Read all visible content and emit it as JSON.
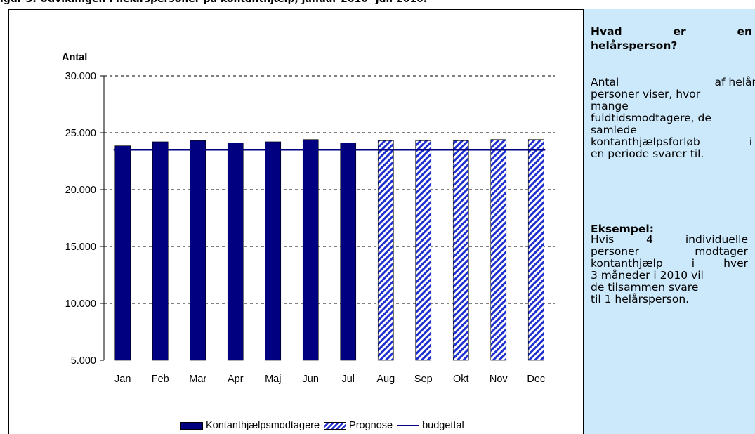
{
  "figure_title": "igur 3: Udviklingen i helårspersoner på kontanthjælp, januar 2010 -juli 2010.",
  "chart_data": {
    "type": "bar",
    "ylabel": "Antal",
    "ylim": [
      5000,
      30000
    ],
    "yticks": [
      5000,
      10000,
      15000,
      20000,
      25000,
      30000
    ],
    "ytick_labels": [
      "5.000",
      "10.000",
      "15.000",
      "20.000",
      "25.000",
      "30.000"
    ],
    "categories": [
      "Jan",
      "Feb",
      "Mar",
      "Apr",
      "Maj",
      "Jun",
      "Jul",
      "Aug",
      "Sep",
      "Okt",
      "Nov",
      "Dec"
    ],
    "grid": "horizontal dashed",
    "legend_position": "bottom",
    "series": [
      {
        "name": "Kontanthjælpsmodtagere",
        "kind": "bar",
        "color": "#000080",
        "values": [
          23850,
          24200,
          24300,
          24100,
          24200,
          24400,
          24100,
          null,
          null,
          null,
          null,
          null
        ]
      },
      {
        "name": "Prognose",
        "kind": "bar-hatched",
        "color": "#1f2fcf",
        "values": [
          null,
          null,
          null,
          null,
          null,
          null,
          null,
          24300,
          24300,
          24300,
          24400,
          24400
        ]
      },
      {
        "name": "budgettal",
        "kind": "line",
        "color": "#000080",
        "values": [
          23500,
          23500,
          23500,
          23500,
          23500,
          23500,
          23500,
          23500,
          23500,
          23500,
          23500,
          23500
        ]
      }
    ]
  },
  "info": {
    "q_word1": "Hvad",
    "q_word2": "er",
    "q_word3": "en",
    "q_line2": "helårsperson?",
    "p1_l1a": "Antal",
    "p1_l1b": "af helårs",
    "p1_l2": "personer viser, hvor",
    "p1_l3": "mange",
    "p1_l4": "fuldtidsmodtagere, de",
    "p1_l5": "samlede",
    "p1_l6a": "kontanthjælpsforløb",
    "p1_l6b": "i",
    "p1_l7": "en periode svarer til.",
    "example_title": "Eksempel:",
    "p2_l1a": "Hvis",
    "p2_l1b": "4",
    "p2_l1c": "individuelle",
    "p2_l2a": "personer",
    "p2_l2b": "modtager",
    "p2_l3a": "kontanthjælp",
    "p2_l3b": "i",
    "p2_l3c": "hver",
    "p2_l4": "3 måneder i 2010 vil",
    "p2_l5": "de tilsammen svare",
    "p2_l6": "til 1 helårsperson."
  }
}
